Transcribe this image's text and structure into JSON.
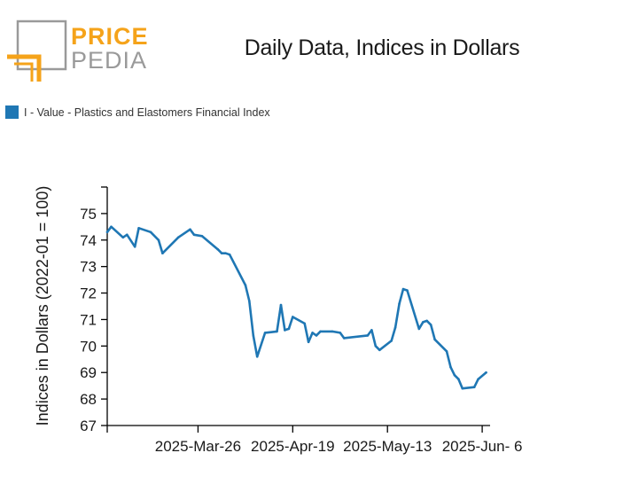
{
  "logo": {
    "word_top": "PRICE",
    "word_bottom": "PEDIA",
    "colors": {
      "orange": "#f5a31a",
      "gray": "#9a9a9a"
    }
  },
  "colors": {
    "series": "#1f77b4",
    "axis": "#000000"
  },
  "chart_data": {
    "type": "line",
    "title": "Daily Data, Indices in Dollars",
    "ylabel": "Indices in Dollars (2022-01 = 100)",
    "xlabel": "",
    "ylim": [
      67,
      76
    ],
    "yticks": [
      67,
      68,
      69,
      70,
      71,
      72,
      73,
      74,
      75
    ],
    "x_range": [
      "2025-03-03",
      "2025-06-08"
    ],
    "xticks": [
      {
        "date": "2025-03-03",
        "label": ""
      },
      {
        "date": "2025-03-26",
        "label": "2025-Mar-26"
      },
      {
        "date": "2025-04-19",
        "label": "2025-Apr-19"
      },
      {
        "date": "2025-05-13",
        "label": "2025-May-13"
      },
      {
        "date": "2025-06-06",
        "label": "2025-Jun- 6"
      }
    ],
    "legend": {
      "position": "top-left"
    },
    "grid": false,
    "series": [
      {
        "name": "I - Value - Plastics and Elastomers Financial Index",
        "points": [
          [
            "2025-03-03",
            74.3
          ],
          [
            "2025-03-04",
            74.5
          ],
          [
            "2025-03-07",
            74.1
          ],
          [
            "2025-03-08",
            74.2
          ],
          [
            "2025-03-10",
            73.75
          ],
          [
            "2025-03-11",
            74.45
          ],
          [
            "2025-03-14",
            74.3
          ],
          [
            "2025-03-16",
            74.0
          ],
          [
            "2025-03-17",
            73.5
          ],
          [
            "2025-03-21",
            74.1
          ],
          [
            "2025-03-24",
            74.4
          ],
          [
            "2025-03-25",
            74.2
          ],
          [
            "2025-03-27",
            74.15
          ],
          [
            "2025-03-31",
            73.65
          ],
          [
            "2025-04-01",
            73.5
          ],
          [
            "2025-04-02",
            73.5
          ],
          [
            "2025-04-03",
            73.45
          ],
          [
            "2025-04-07",
            72.3
          ],
          [
            "2025-04-08",
            71.7
          ],
          [
            "2025-04-09",
            70.4
          ],
          [
            "2025-04-10",
            69.6
          ],
          [
            "2025-04-12",
            70.5
          ],
          [
            "2025-04-15",
            70.55
          ],
          [
            "2025-04-16",
            71.55
          ],
          [
            "2025-04-17",
            70.6
          ],
          [
            "2025-04-18",
            70.65
          ],
          [
            "2025-04-19",
            71.1
          ],
          [
            "2025-04-22",
            70.85
          ],
          [
            "2025-04-23",
            70.15
          ],
          [
            "2025-04-24",
            70.5
          ],
          [
            "2025-04-25",
            70.4
          ],
          [
            "2025-04-26",
            70.55
          ],
          [
            "2025-04-29",
            70.55
          ],
          [
            "2025-05-01",
            70.5
          ],
          [
            "2025-05-02",
            70.3
          ],
          [
            "2025-05-08",
            70.4
          ],
          [
            "2025-05-09",
            70.6
          ],
          [
            "2025-05-10",
            70.0
          ],
          [
            "2025-05-11",
            69.85
          ],
          [
            "2025-05-14",
            70.2
          ],
          [
            "2025-05-15",
            70.7
          ],
          [
            "2025-05-16",
            71.6
          ],
          [
            "2025-05-17",
            72.15
          ],
          [
            "2025-05-18",
            72.1
          ],
          [
            "2025-05-21",
            70.65
          ],
          [
            "2025-05-22",
            70.9
          ],
          [
            "2025-05-23",
            70.95
          ],
          [
            "2025-05-24",
            70.8
          ],
          [
            "2025-05-25",
            70.25
          ],
          [
            "2025-05-28",
            69.8
          ],
          [
            "2025-05-29",
            69.2
          ],
          [
            "2025-05-30",
            68.9
          ],
          [
            "2025-05-31",
            68.75
          ],
          [
            "2025-06-01",
            68.4
          ],
          [
            "2025-06-04",
            68.45
          ],
          [
            "2025-06-05",
            68.75
          ],
          [
            "2025-06-07",
            69.0
          ]
        ]
      }
    ]
  }
}
